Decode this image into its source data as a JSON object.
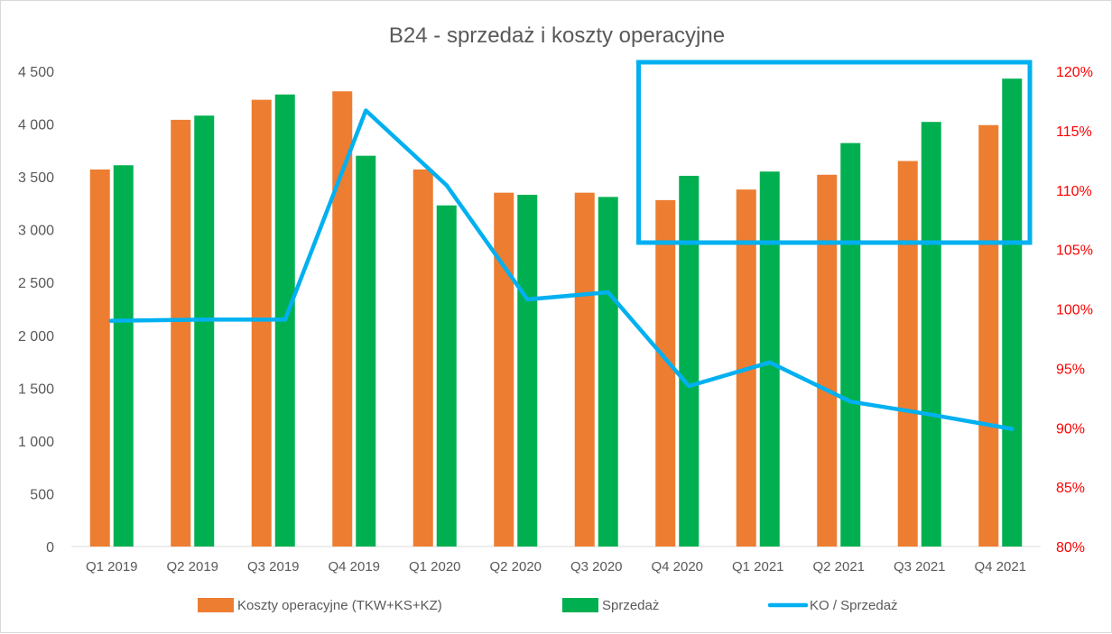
{
  "chart_data": {
    "type": "bar",
    "title": "B24 - sprzedaż i koszty operacyjne",
    "categories": [
      "Q1 2019",
      "Q2 2019",
      "Q3 2019",
      "Q4 2019",
      "Q1 2020",
      "Q2 2020",
      "Q3 2020",
      "Q4 2020",
      "Q1 2021",
      "Q2 2021",
      "Q3 2021",
      "Q4 2021"
    ],
    "series": [
      {
        "name": "Koszty operacyjne (TKW+KS+KZ)",
        "type": "bar",
        "axis": "left",
        "color": "#ed7d31",
        "values": [
          3570,
          4040,
          4230,
          4310,
          3570,
          3350,
          3350,
          3280,
          3380,
          3520,
          3650,
          3990
        ]
      },
      {
        "name": "Sprzedaż",
        "type": "bar",
        "axis": "left",
        "color": "#00b050",
        "values": [
          3610,
          4080,
          4280,
          3700,
          3230,
          3330,
          3310,
          3510,
          3550,
          3820,
          4020,
          4430
        ]
      },
      {
        "name": "KO / Sprzedaż",
        "type": "line",
        "axis": "right",
        "color": "#00b0f0",
        "values": [
          99.0,
          99.1,
          99.1,
          116.7,
          110.4,
          100.8,
          101.4,
          93.5,
          95.5,
          92.2,
          91.1,
          89.9
        ]
      }
    ],
    "y_left": {
      "min": 0,
      "max": 4500,
      "step": 500,
      "tick_labels": [
        "0",
        "500",
        "1 000",
        "1 500",
        "2 000",
        "2 500",
        "3 000",
        "3 500",
        "4 000",
        "4 500"
      ]
    },
    "y_right": {
      "min": 80,
      "max": 120,
      "step": 5,
      "unit": "%",
      "color": "#ff0000",
      "tick_labels": [
        "80%",
        "85%",
        "90%",
        "95%",
        "100%",
        "105%",
        "110%",
        "115%",
        "120%"
      ]
    },
    "legend": {
      "position": "bottom",
      "items": [
        {
          "label": "Koszty operacyjne (TKW+KS+KZ)",
          "color": "#ed7d31",
          "kind": "bar"
        },
        {
          "label": "Sprzedaż",
          "color": "#00b050",
          "kind": "bar"
        },
        {
          "label": "KO / Sprzedaż",
          "color": "#00b0f0",
          "kind": "line"
        }
      ]
    },
    "highlight": {
      "from_category": "Q4 2020",
      "to_category": "Q4 2021",
      "color": "#00b0f0"
    },
    "grid": false
  }
}
